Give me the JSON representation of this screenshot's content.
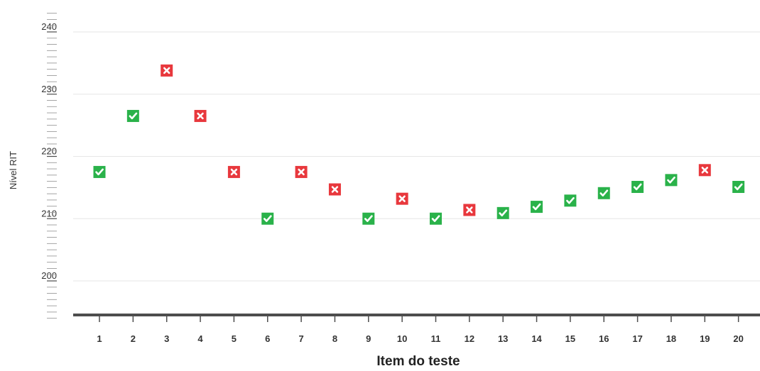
{
  "chart_data": {
    "type": "scatter",
    "xlabel": "Item do teste",
    "ylabel": "Nível RIT",
    "ylim": [
      194,
      243
    ],
    "yticks": [
      200,
      210,
      220,
      230,
      240
    ],
    "grid": true,
    "categories": [
      "1",
      "2",
      "3",
      "4",
      "5",
      "6",
      "7",
      "8",
      "9",
      "10",
      "11",
      "12",
      "13",
      "14",
      "15",
      "16",
      "17",
      "18",
      "19",
      "20"
    ],
    "points": [
      {
        "item": "1",
        "value": 217.5,
        "result": "correct"
      },
      {
        "item": "2",
        "value": 226.5,
        "result": "correct"
      },
      {
        "item": "3",
        "value": 233.8,
        "result": "incorrect"
      },
      {
        "item": "4",
        "value": 226.5,
        "result": "incorrect"
      },
      {
        "item": "5",
        "value": 217.5,
        "result": "incorrect"
      },
      {
        "item": "6",
        "value": 210,
        "result": "correct"
      },
      {
        "item": "7",
        "value": 217.5,
        "result": "incorrect"
      },
      {
        "item": "8",
        "value": 214.7,
        "result": "incorrect"
      },
      {
        "item": "9",
        "value": 210,
        "result": "correct"
      },
      {
        "item": "10",
        "value": 213.2,
        "result": "incorrect"
      },
      {
        "item": "11",
        "value": 210,
        "result": "correct"
      },
      {
        "item": "12",
        "value": 211.4,
        "result": "incorrect"
      },
      {
        "item": "13",
        "value": 210.9,
        "result": "correct"
      },
      {
        "item": "14",
        "value": 211.9,
        "result": "correct"
      },
      {
        "item": "15",
        "value": 212.9,
        "result": "correct"
      },
      {
        "item": "16",
        "value": 214.1,
        "result": "correct"
      },
      {
        "item": "17",
        "value": 215.1,
        "result": "correct"
      },
      {
        "item": "18",
        "value": 216.2,
        "result": "correct"
      },
      {
        "item": "19",
        "value": 217.8,
        "result": "incorrect"
      },
      {
        "item": "20",
        "value": 215.1,
        "result": "correct"
      }
    ],
    "colors": {
      "correct": "#2ab24a",
      "incorrect": "#e8383d",
      "grid": "#e6e6e6",
      "axis": "#4d4d4d",
      "minor_tick": "#9a9a9a"
    },
    "icons": {
      "correct": "check-icon",
      "incorrect": "x-icon"
    }
  }
}
